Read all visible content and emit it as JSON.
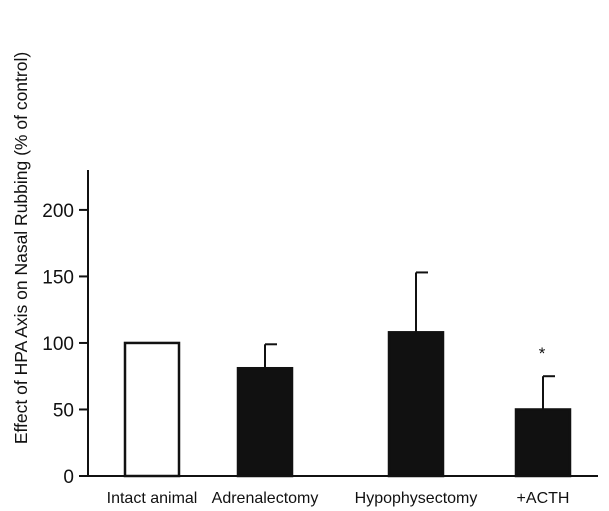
{
  "chart_data": {
    "type": "bar",
    "title": "",
    "xlabel": "",
    "ylabel": "Effect of HPA Axis on Nasal Rubbing (% of control)",
    "categories": [
      "Intact animal",
      "Adrenalectomy",
      "Hypophysectomy",
      "+ACTH"
    ],
    "values": [
      100,
      81,
      108,
      50
    ],
    "error_upper": [
      0,
      18,
      45,
      25
    ],
    "bar_fill": [
      "#ffffff",
      "#111111",
      "#111111",
      "#111111"
    ],
    "annotations": [
      "",
      "",
      "",
      "*"
    ],
    "ylim": [
      0,
      230
    ],
    "yticks": [
      0,
      50,
      100,
      150,
      200
    ],
    "grid": false,
    "legend": "none"
  }
}
